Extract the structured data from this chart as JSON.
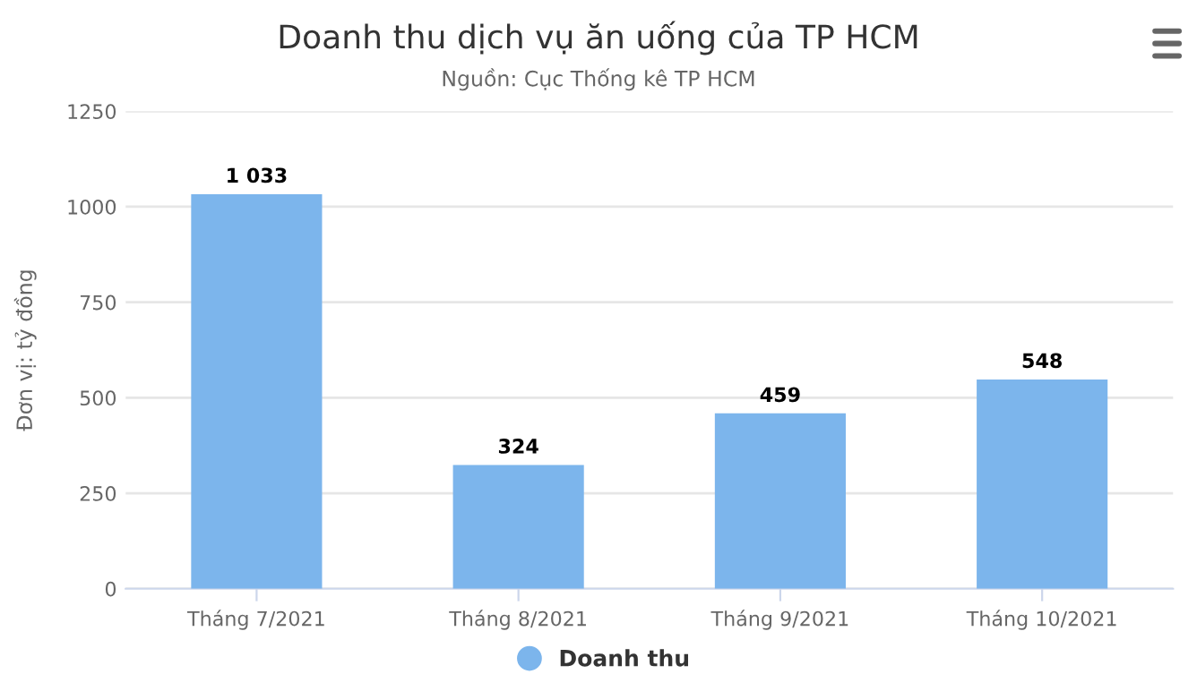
{
  "chart_data": {
    "type": "bar",
    "title": "Doanh thu dịch vụ ăn uống của TP HCM",
    "subtitle": "Nguồn: Cục Thống kê TP HCM",
    "ylabel": "Đơn vị: tỷ đồng",
    "categories": [
      "Tháng 7/2021",
      "Tháng 8/2021",
      "Tháng 9/2021",
      "Tháng 10/2021"
    ],
    "series": [
      {
        "name": "Doanh thu",
        "color": "#7cb5ec",
        "values": [
          1033,
          324,
          459,
          548
        ],
        "value_labels": [
          "1 033",
          "324",
          "459",
          "548"
        ]
      }
    ],
    "ylim": [
      0,
      1250
    ],
    "yticks": [
      0,
      250,
      500,
      750,
      1000,
      1250
    ],
    "grid": "y",
    "legend": "bottom"
  }
}
